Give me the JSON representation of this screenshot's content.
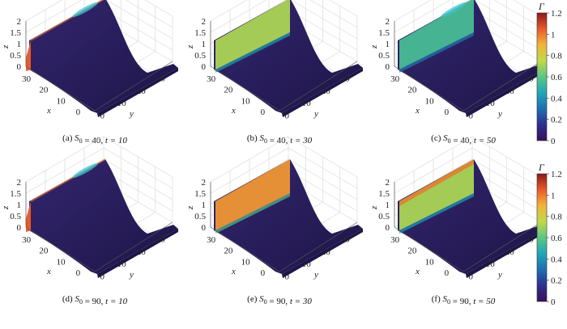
{
  "figure": {
    "panels": [
      {
        "id": "a",
        "caption": {
          "label": "(a)",
          "s_symbol": "S",
          "s_sub": "0",
          "s_eq": "= 40,",
          "t_eq": "t = 10"
        },
        "S0": 40,
        "t": 10,
        "wall_gamma": 1.0,
        "top_tint": "cyan"
      },
      {
        "id": "b",
        "caption": {
          "label": "(b)",
          "s_symbol": "S",
          "s_sub": "0",
          "s_eq": "= 40,",
          "t_eq": "t = 30"
        },
        "S0": 40,
        "t": 30,
        "wall_gamma": 0.72,
        "top_tint": "none"
      },
      {
        "id": "c",
        "caption": {
          "label": "(c)",
          "s_symbol": "S",
          "s_sub": "0",
          "s_eq": "= 40,",
          "t_eq": "t = 50"
        },
        "S0": 40,
        "t": 50,
        "wall_gamma": 0.55,
        "top_tint": "cyan"
      },
      {
        "id": "d",
        "caption": {
          "label": "(d)",
          "s_symbol": "S",
          "s_sub": "0",
          "s_eq": "= 90,",
          "t_eq": "t = 10"
        },
        "S0": 90,
        "t": 10,
        "wall_gamma": 1.0,
        "top_tint": "cyan"
      },
      {
        "id": "e",
        "caption": {
          "label": "(e)",
          "s_symbol": "S",
          "s_sub": "0",
          "s_eq": "= 90,",
          "t_eq": "t = 30"
        },
        "S0": 90,
        "t": 30,
        "wall_gamma": 0.95,
        "top_tint": "none"
      },
      {
        "id": "f",
        "caption": {
          "label": "(f)",
          "s_symbol": "S",
          "s_sub": "0",
          "s_eq": "= 90,",
          "t_eq": "t = 50"
        },
        "S0": 90,
        "t": 50,
        "wall_gamma": 0.72,
        "top_tint": "orange"
      }
    ],
    "axes": {
      "x_label": "x",
      "y_label": "y",
      "z_label": "z",
      "x_ticks": [
        "30",
        "20",
        "10",
        "0"
      ],
      "y_ticks": [
        "0",
        "10",
        "20",
        "30"
      ],
      "z_ticks": [
        "0",
        "0.5",
        "1",
        "1.5",
        "2"
      ]
    },
    "colorbar": {
      "title": "Γ",
      "ticks": [
        "0",
        "0.2",
        "0.4",
        "0.6",
        "0.8",
        "1",
        "1.2"
      ],
      "min": 0,
      "max": 1.2
    },
    "colors": {
      "surface": "#2b1f60",
      "surface_dark": "#1e1548",
      "colormap": [
        "#3a0e5a",
        "#2d2f8f",
        "#1f6fb0",
        "#20a6b8",
        "#5cc783",
        "#bfd94a",
        "#f2b53a",
        "#e85a2a",
        "#8b1a1a"
      ]
    }
  }
}
